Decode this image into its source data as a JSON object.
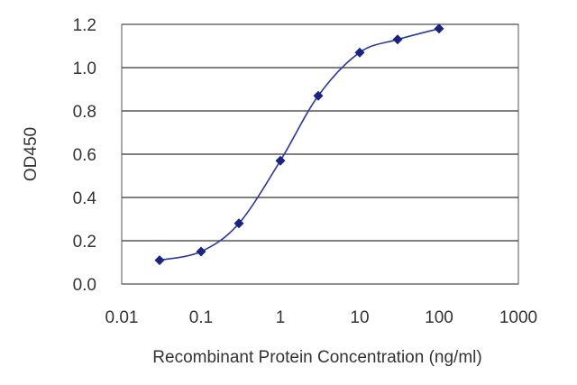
{
  "chart_data": {
    "type": "line",
    "title": "",
    "xlabel": "Recombinant Protein Concentration (ng/ml)",
    "ylabel": "OD450",
    "x_scale": "log",
    "xlim": [
      0.01,
      1000
    ],
    "ylim": [
      0,
      1.2
    ],
    "x_ticks": [
      0.01,
      0.1,
      1,
      10,
      100,
      1000
    ],
    "x_tick_labels": [
      "0.01",
      "0.1",
      "1",
      "10",
      "100",
      "1000"
    ],
    "y_ticks": [
      0,
      0.2,
      0.4,
      0.6,
      0.8,
      1.0,
      1.2
    ],
    "y_tick_labels": [
      "0.0",
      "0.2",
      "0.4",
      "0.6",
      "0.8",
      "1.0",
      "1.2"
    ],
    "grid": "horizontal",
    "legend": "none",
    "series": [
      {
        "x": [
          0.03,
          0.1,
          0.3,
          1,
          3,
          10,
          30,
          100
        ],
        "y": [
          0.11,
          0.15,
          0.28,
          0.57,
          0.87,
          1.07,
          1.13,
          1.18
        ],
        "color": "#2b3a9c",
        "marker_color": "#1a237e"
      }
    ],
    "colors": {
      "grid": "#333333",
      "frame": "#555555",
      "line": "#2b3a9c",
      "marker": "#1a237e"
    }
  }
}
